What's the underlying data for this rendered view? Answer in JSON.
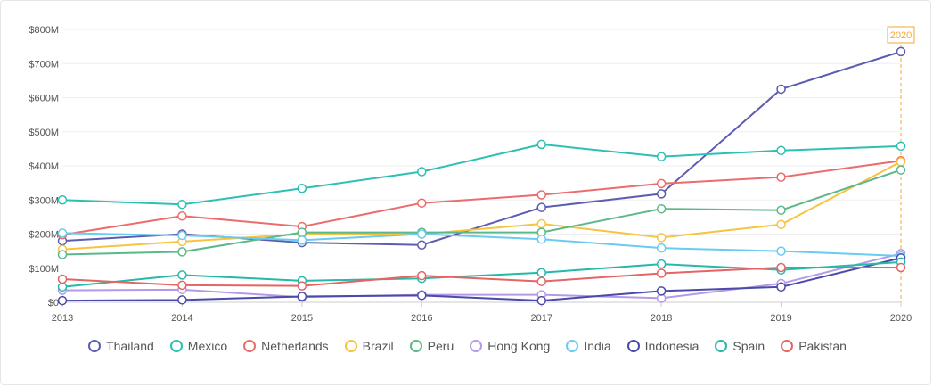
{
  "chart_data": {
    "type": "line",
    "x": [
      "2013",
      "2014",
      "2015",
      "2016",
      "2017",
      "2018",
      "2019",
      "2020"
    ],
    "ylim": [
      0,
      800
    ],
    "yticks": [
      0,
      100,
      200,
      300,
      400,
      500,
      600,
      700,
      800
    ],
    "ytick_labels": [
      "$0",
      "$100M",
      "$200M",
      "$300M",
      "$400M",
      "$500M",
      "$600M",
      "$700M",
      "$800M"
    ],
    "grid": true,
    "legend": "bottom",
    "highlight_label": "2020",
    "highlight_color": "#f2a93b",
    "series": [
      {
        "name": "Thailand",
        "color": "#5c5cb0",
        "values": [
          180,
          200,
          175,
          168,
          278,
          318,
          625,
          735
        ]
      },
      {
        "name": "Mexico",
        "color": "#2cc0b4",
        "values": [
          300,
          287,
          334,
          383,
          463,
          427,
          445,
          458
        ]
      },
      {
        "name": "Netherlands",
        "color": "#ec6b6b",
        "values": [
          198,
          253,
          222,
          291,
          315,
          348,
          367,
          415
        ]
      },
      {
        "name": "Brazil",
        "color": "#f7c340",
        "values": [
          155,
          178,
          200,
          200,
          230,
          190,
          228,
          412
        ]
      },
      {
        "name": "Peru",
        "color": "#5cb88a",
        "values": [
          140,
          148,
          205,
          205,
          205,
          274,
          270,
          388
        ]
      },
      {
        "name": "Hong Kong",
        "color": "#b49ae6",
        "values": [
          35,
          37,
          15,
          22,
          22,
          12,
          55,
          143
        ]
      },
      {
        "name": "India",
        "color": "#6acbf0",
        "values": [
          203,
          196,
          182,
          200,
          185,
          159,
          150,
          136
        ]
      },
      {
        "name": "Indonesia",
        "color": "#4a4aa8",
        "values": [
          5,
          7,
          17,
          20,
          5,
          33,
          45,
          130
        ]
      },
      {
        "name": "Spain",
        "color": "#26b8a8",
        "values": [
          45,
          80,
          63,
          70,
          87,
          112,
          95,
          118
        ]
      },
      {
        "name": "Pakistan",
        "color": "#e56464",
        "values": [
          68,
          50,
          48,
          78,
          61,
          85,
          102,
          102
        ]
      }
    ]
  }
}
